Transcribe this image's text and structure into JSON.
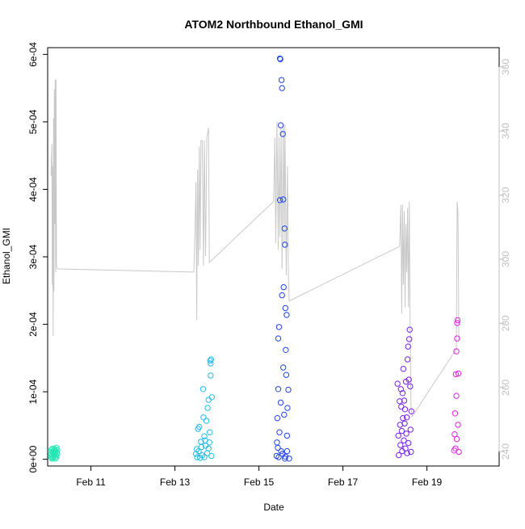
{
  "chart_data": {
    "type": "scatter",
    "title": "ATOM2 Northbound Ethanol_GMI",
    "xlabel": "Date",
    "ylabel": "Ethanol_GMI",
    "x_range_days": [
      9.97,
      20.72
    ],
    "ylim": [
      -1e-05,
      0.00061
    ],
    "y2lim": [
      235.5,
      366
    ],
    "x_ticks": [
      {
        "day": 11,
        "label": "Feb 11"
      },
      {
        "day": 13,
        "label": "Feb 13"
      },
      {
        "day": 15,
        "label": "Feb 15"
      },
      {
        "day": 17,
        "label": "Feb 17"
      },
      {
        "day": 19,
        "label": "Feb 19"
      }
    ],
    "y_ticks": [
      {
        "value": 0,
        "label": "0e+00"
      },
      {
        "value": 0.0001,
        "label": "1e-04"
      },
      {
        "value": 0.0002,
        "label": "2e-04"
      },
      {
        "value": 0.0003,
        "label": "3e-04"
      },
      {
        "value": 0.0004,
        "label": "4e-04"
      },
      {
        "value": 0.0005,
        "label": "5e-04"
      },
      {
        "value": 0.0006,
        "label": "6e-04"
      }
    ],
    "y2_ticks": [
      240,
      260,
      280,
      300,
      320,
      340,
      360
    ],
    "grid": false,
    "legend": "none",
    "colors": {
      "axis": "#000000",
      "secondary_axis": "#c0c0c0",
      "line": "#c8c8c8"
    },
    "series": [
      {
        "color": "#22e6b4",
        "points": [
          [
            10.05,
            3e-06
          ],
          [
            10.05,
            8e-06
          ],
          [
            10.06,
            1.4e-05
          ],
          [
            10.07,
            1e-06
          ],
          [
            10.07,
            1.1e-05
          ],
          [
            10.08,
            5e-06
          ],
          [
            10.09,
            1.6e-05
          ],
          [
            10.1,
            2e-06
          ],
          [
            10.1,
            1e-05
          ],
          [
            10.11,
            7e-06
          ],
          [
            10.12,
            1.3e-05
          ],
          [
            10.13,
            4e-06
          ],
          [
            10.14,
            9e-06
          ],
          [
            10.14,
            1.5e-05
          ],
          [
            10.15,
            1e-06
          ],
          [
            10.16,
            1.2e-05
          ],
          [
            10.17,
            6e-06
          ],
          [
            10.18,
            1.7e-05
          ],
          [
            10.18,
            3e-06
          ],
          [
            10.19,
            1e-05
          ],
          [
            10.2,
            8e-06
          ],
          [
            10.2,
            1.4e-05
          ]
        ]
      },
      {
        "color": "#22bcea",
        "points": [
          [
            13.5,
            8e-06
          ],
          [
            13.52,
            1.5e-05
          ],
          [
            13.53,
            3e-06
          ],
          [
            13.55,
            4.5e-05
          ],
          [
            13.57,
            1.2e-05
          ],
          [
            13.58,
            4.8e-05
          ],
          [
            13.6,
            2e-06
          ],
          [
            13.62,
            2.6e-05
          ],
          [
            13.63,
            1.8e-05
          ],
          [
            13.65,
            6e-06
          ],
          [
            13.67,
            0.000104
          ],
          [
            13.68,
            6.2e-05
          ],
          [
            13.7,
            3.4e-05
          ],
          [
            13.7,
            3e-06
          ],
          [
            13.72,
            2.8e-05
          ],
          [
            13.73,
            2e-05
          ],
          [
            13.75,
            5.7e-05
          ],
          [
            13.77,
            9e-06
          ],
          [
            13.78,
            7.6e-05
          ],
          [
            13.8,
            1.6e-05
          ],
          [
            13.8,
            8.8e-05
          ],
          [
            13.82,
            2.5e-05
          ],
          [
            13.83,
            4e-05
          ],
          [
            13.84,
            0.000146
          ],
          [
            13.85,
            0.000142
          ],
          [
            13.85,
            0.000124
          ],
          [
            13.86,
            0.000148
          ],
          [
            13.87,
            5e-06
          ],
          [
            13.88,
            9.2e-05
          ]
        ]
      },
      {
        "color": "#2244ea",
        "points": [
          [
            15.42,
            5e-06
          ],
          [
            15.43,
            2.5e-05
          ],
          [
            15.44,
            6.1e-05
          ],
          [
            15.45,
            1.7e-05
          ],
          [
            15.46,
            0.000104
          ],
          [
            15.46,
            0.000179
          ],
          [
            15.47,
            3e-06
          ],
          [
            15.48,
            0.000196
          ],
          [
            15.49,
            4e-05
          ],
          [
            15.5,
            0.000384
          ],
          [
            15.5,
            0.000594
          ],
          [
            15.51,
            0.000593
          ],
          [
            15.52,
            8.4e-05
          ],
          [
            15.52,
            0.000495
          ],
          [
            15.53,
            1.2e-05
          ],
          [
            15.54,
            0.000562
          ],
          [
            15.55,
            0.000243
          ],
          [
            15.55,
            0.00055
          ],
          [
            15.56,
            8e-06
          ],
          [
            15.57,
            0.000482
          ],
          [
            15.58,
            0.000385
          ],
          [
            15.58,
            0.000136
          ],
          [
            15.59,
            0.000255
          ],
          [
            15.6,
            6.6e-05
          ],
          [
            15.61,
            0.000342
          ],
          [
            15.62,
            0.000318
          ],
          [
            15.62,
            1e-06
          ],
          [
            15.63,
            0.000224
          ],
          [
            15.63,
            4e-06
          ],
          [
            15.64,
            0.000162
          ],
          [
            15.65,
            0.000125
          ],
          [
            15.66,
            0.000214
          ],
          [
            15.67,
            1.2e-05
          ],
          [
            15.67,
            3.5e-05
          ],
          [
            15.68,
            7.6e-05
          ],
          [
            15.7,
            0.000103
          ],
          [
            15.72,
            1e-06
          ]
        ]
      },
      {
        "color": "#7a22ea",
        "points": [
          [
            18.3,
            0.000112
          ],
          [
            18.32,
            3.5e-05
          ],
          [
            18.33,
            6e-06
          ],
          [
            18.35,
            8.6e-05
          ],
          [
            18.36,
            5.1e-05
          ],
          [
            18.37,
            2.1e-05
          ],
          [
            18.38,
            0.000104
          ],
          [
            18.39,
            7.8e-05
          ],
          [
            18.4,
            4.2e-05
          ],
          [
            18.41,
            1.2e-05
          ],
          [
            18.42,
            9.8e-05
          ],
          [
            18.43,
            6.1e-05
          ],
          [
            18.44,
            0.000134
          ],
          [
            18.45,
            2.8e-05
          ],
          [
            18.46,
            8.7e-05
          ],
          [
            18.47,
            5.3e-05
          ],
          [
            18.48,
            7.4e-05
          ],
          [
            18.49,
            1.6e-05
          ],
          [
            18.5,
            0.000115
          ],
          [
            18.51,
            3.8e-05
          ],
          [
            18.52,
            6.2e-05
          ],
          [
            18.53,
            9e-06
          ],
          [
            18.54,
            0.000148
          ],
          [
            18.55,
            0.000167
          ],
          [
            18.56,
            2.4e-05
          ],
          [
            18.57,
            0.000118
          ],
          [
            18.58,
            0.000178
          ],
          [
            18.59,
            0.000192
          ],
          [
            18.6,
            0.000108
          ],
          [
            18.61,
            4.4e-05
          ],
          [
            18.62,
            1.1e-05
          ],
          [
            18.63,
            7.1e-05
          ]
        ]
      },
      {
        "color": "#e422e4",
        "points": [
          [
            19.65,
            1.3e-05
          ],
          [
            19.66,
            3.7e-05
          ],
          [
            19.67,
            6.8e-05
          ],
          [
            19.68,
            1.6e-05
          ],
          [
            19.69,
            0.000126
          ],
          [
            19.7,
            0.00016
          ],
          [
            19.7,
            9.4e-05
          ],
          [
            19.71,
            3e-05
          ],
          [
            19.72,
            0.000179
          ],
          [
            19.72,
            0.000202
          ],
          [
            19.73,
            0.000206
          ],
          [
            19.74,
            5.1e-05
          ],
          [
            19.75,
            0.000127
          ],
          [
            19.76,
            1.1e-05
          ]
        ]
      }
    ],
    "secondary_line": {
      "name": "",
      "axis": "right",
      "points": [
        [
          10.05,
          326
        ],
        [
          10.07,
          336
        ],
        [
          10.08,
          292
        ],
        [
          10.09,
          329
        ],
        [
          10.1,
          276
        ],
        [
          10.11,
          344
        ],
        [
          10.12,
          290
        ],
        [
          10.13,
          353
        ],
        [
          10.14,
          311
        ],
        [
          10.15,
          356
        ],
        [
          10.16,
          296
        ],
        [
          10.17,
          356
        ],
        [
          10.18,
          298
        ],
        [
          10.2,
          297
        ],
        [
          13.45,
          296
        ],
        [
          13.48,
          310
        ],
        [
          13.5,
          324
        ],
        [
          13.52,
          281
        ],
        [
          13.54,
          328
        ],
        [
          13.56,
          298
        ],
        [
          13.58,
          335
        ],
        [
          13.6,
          303
        ],
        [
          13.62,
          337
        ],
        [
          13.65,
          337
        ],
        [
          13.68,
          298
        ],
        [
          13.7,
          337
        ],
        [
          13.73,
          301
        ],
        [
          13.76,
          338
        ],
        [
          13.8,
          341
        ],
        [
          13.82,
          299
        ],
        [
          15.35,
          318
        ],
        [
          15.38,
          338
        ],
        [
          15.4,
          305
        ],
        [
          15.43,
          343
        ],
        [
          15.46,
          303
        ],
        [
          15.48,
          338
        ],
        [
          15.5,
          307
        ],
        [
          15.53,
          341
        ],
        [
          15.55,
          297
        ],
        [
          15.58,
          342
        ],
        [
          15.6,
          305
        ],
        [
          15.62,
          342
        ],
        [
          15.65,
          295
        ],
        [
          15.68,
          329
        ],
        [
          15.7,
          296
        ],
        [
          15.72,
          287
        ],
        [
          18.35,
          304
        ],
        [
          18.38,
          317
        ],
        [
          18.4,
          283
        ],
        [
          18.42,
          317
        ],
        [
          18.44,
          292
        ],
        [
          18.46,
          315
        ],
        [
          18.48,
          285
        ],
        [
          18.5,
          311
        ],
        [
          18.52,
          296
        ],
        [
          18.54,
          316
        ],
        [
          18.56,
          285
        ],
        [
          18.58,
          318
        ],
        [
          18.6,
          279
        ],
        [
          18.62,
          254
        ],
        [
          18.65,
          251
        ],
        [
          19.7,
          272
        ],
        [
          19.72,
          318
        ],
        [
          19.74,
          315
        ],
        [
          19.76,
          275
        ]
      ]
    }
  }
}
